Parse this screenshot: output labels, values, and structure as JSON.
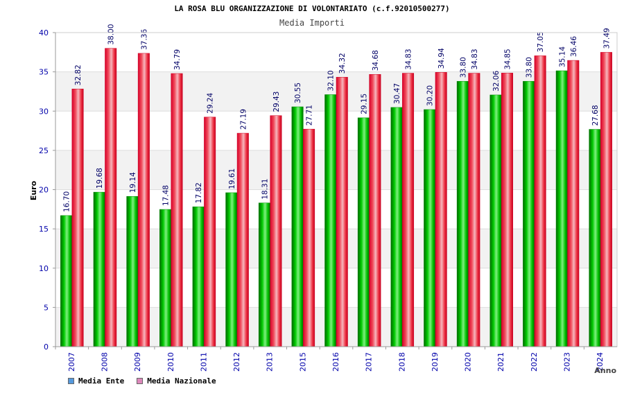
{
  "header": {
    "title": "LA ROSA BLU ORGANIZZAZIONE DI VOLONTARIATO (c.f.92010500277)",
    "subtitle": "Media Importi"
  },
  "colors": {
    "ente": "#00b000",
    "nazionale": "#ff2a3a",
    "ente_legend": "#5599dd",
    "nazionale_legend": "#dd88bb",
    "axis_text": "#0000aa"
  },
  "legend": {
    "ente_label": "Media Ente",
    "nazionale_label": "Media Nazionale"
  },
  "chart_data": {
    "type": "bar",
    "xlabel": "Anno",
    "ylabel": "Euro",
    "ylim": [
      0,
      40
    ],
    "yticks": [
      0,
      5,
      10,
      15,
      20,
      25,
      30,
      35,
      40
    ],
    "grid": true,
    "legend_position": "bottom-left",
    "categories": [
      "2007",
      "2008",
      "2009",
      "2010",
      "2011",
      "2012",
      "2013",
      "2015",
      "2016",
      "2017",
      "2018",
      "2019",
      "2020",
      "2021",
      "2022",
      "2023",
      "2024"
    ],
    "series": [
      {
        "name": "Media Ente",
        "values": [
          16.7,
          19.68,
          19.14,
          17.48,
          17.82,
          19.61,
          18.31,
          30.55,
          32.1,
          29.15,
          30.47,
          30.2,
          33.8,
          32.06,
          33.8,
          35.14,
          27.68
        ],
        "labels": [
          "16.70",
          "19.68",
          "19.14",
          "17.48",
          "17.82",
          "19.61",
          "18.31",
          "30.55",
          "32.10",
          "29.15",
          "30.47",
          "30.20",
          "33.80",
          "32.06",
          "33.80",
          "35.14",
          "27.68"
        ]
      },
      {
        "name": "Media Nazionale",
        "values": [
          32.82,
          38.0,
          37.36,
          34.79,
          29.24,
          27.19,
          29.43,
          27.71,
          34.32,
          34.68,
          34.83,
          34.94,
          34.83,
          34.85,
          37.05,
          36.46,
          37.49
        ],
        "labels": [
          "32.82",
          "38.00",
          "37.36",
          "34.79",
          "29.24",
          "27.19",
          "29.43",
          "27.71",
          "34.32",
          "34.68",
          "34.83",
          "34.94",
          "34.83",
          "34.85",
          "37.05",
          "36.46",
          "37.49"
        ]
      }
    ]
  }
}
